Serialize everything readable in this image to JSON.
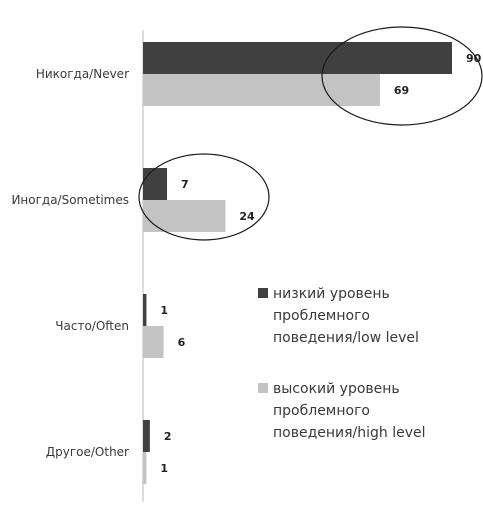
{
  "chart_data": {
    "type": "bar",
    "orientation": "horizontal",
    "title": "",
    "xlabel": "",
    "ylabel": "",
    "xlim": [
      0,
      100
    ],
    "categories": [
      "Никогда/Never",
      "Иногда/Sometimes",
      "Часто/Often",
      "Другое/Other"
    ],
    "series": [
      {
        "name": "низкий уровень проблемного поведения/low level",
        "legend_lines": [
          "низкий уровень",
          "проблемного",
          "поведения/low level"
        ],
        "color": "#404040",
        "values": [
          90,
          7,
          1,
          2
        ]
      },
      {
        "name": "высокий уровень проблемного поведения/high level",
        "legend_lines": [
          "высокий уровень",
          "проблемного",
          "поведения/high level"
        ],
        "color": "#c3c3c3",
        "values": [
          69,
          24,
          6,
          1
        ]
      }
    ],
    "grid": false,
    "legend_position": "right",
    "annotations": [
      {
        "type": "ellipse",
        "category": "Никогда/Never"
      },
      {
        "type": "ellipse",
        "category": "Иногда/Sometimes"
      }
    ]
  }
}
